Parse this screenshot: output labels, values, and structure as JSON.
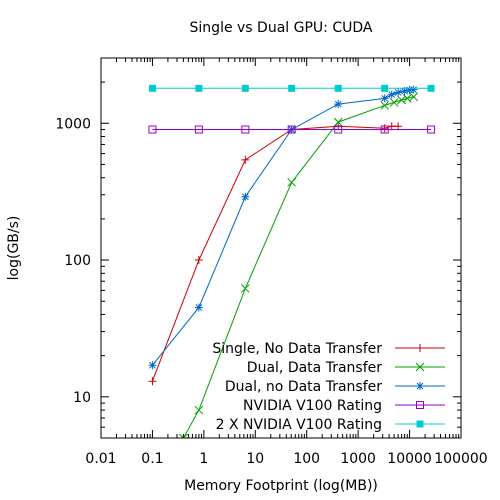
{
  "chart_data": {
    "type": "line",
    "title": "Single vs Dual GPU: CUDA",
    "xlabel": "Memory Footprint (log(MB))",
    "ylabel": "log(GB/s)",
    "x_scale": "log",
    "y_scale": "log",
    "xlim": [
      0.01,
      100000
    ],
    "ylim": [
      5,
      3000
    ],
    "x_ticks": [
      {
        "value": 0.01,
        "label": "0.01"
      },
      {
        "value": 0.1,
        "label": "0.1"
      },
      {
        "value": 1,
        "label": "1"
      },
      {
        "value": 10,
        "label": "10"
      },
      {
        "value": 100,
        "label": "100"
      },
      {
        "value": 1000,
        "label": "1000"
      },
      {
        "value": 10000,
        "label": "10000"
      },
      {
        "value": 100000,
        "label": "100000"
      }
    ],
    "y_ticks": [
      {
        "value": 10,
        "label": "10"
      },
      {
        "value": 100,
        "label": "100"
      },
      {
        "value": 1000,
        "label": "1000"
      }
    ],
    "legend_position": "bottom-right",
    "grid": false,
    "series": [
      {
        "name": "Single, No Data Transfer",
        "color": "#cc0000",
        "marker": "plus",
        "points": [
          [
            0.1,
            13
          ],
          [
            0.8,
            100
          ],
          [
            6.4,
            540
          ],
          [
            51,
            900
          ],
          [
            410,
            950
          ],
          [
            3280,
            920
          ],
          [
            4500,
            950
          ],
          [
            6000,
            950
          ]
        ]
      },
      {
        "name": "Dual, Data Transfer",
        "color": "#00a000",
        "marker": "cross",
        "points": [
          [
            0.4,
            5
          ],
          [
            0.8,
            8
          ],
          [
            6.4,
            62
          ],
          [
            51,
            370
          ],
          [
            410,
            1020
          ],
          [
            3280,
            1350
          ],
          [
            5000,
            1420
          ],
          [
            7000,
            1480
          ],
          [
            9000,
            1520
          ],
          [
            12000,
            1560
          ]
        ]
      },
      {
        "name": "Dual, no Data Transfer",
        "color": "#0066cc",
        "marker": "star",
        "points": [
          [
            0.1,
            17
          ],
          [
            0.8,
            45
          ],
          [
            6.4,
            290
          ],
          [
            51,
            900
          ],
          [
            410,
            1380
          ],
          [
            3280,
            1520
          ],
          [
            4500,
            1620
          ],
          [
            6000,
            1680
          ],
          [
            8000,
            1720
          ],
          [
            10000,
            1750
          ],
          [
            12000,
            1760
          ]
        ]
      },
      {
        "name": "NVIDIA V100 Rating",
        "color": "#9900cc",
        "marker": "square-open",
        "points": [
          [
            0.1,
            900
          ],
          [
            0.8,
            900
          ],
          [
            6.4,
            900
          ],
          [
            51,
            900
          ],
          [
            410,
            900
          ],
          [
            3280,
            900
          ],
          [
            26200,
            900
          ]
        ]
      },
      {
        "name": "2 X NVIDIA V100 Rating",
        "color": "#00cccc",
        "marker": "square-filled",
        "points": [
          [
            0.1,
            1800
          ],
          [
            0.8,
            1800
          ],
          [
            6.4,
            1800
          ],
          [
            51,
            1800
          ],
          [
            410,
            1800
          ],
          [
            3280,
            1800
          ],
          [
            26200,
            1800
          ]
        ]
      }
    ]
  }
}
